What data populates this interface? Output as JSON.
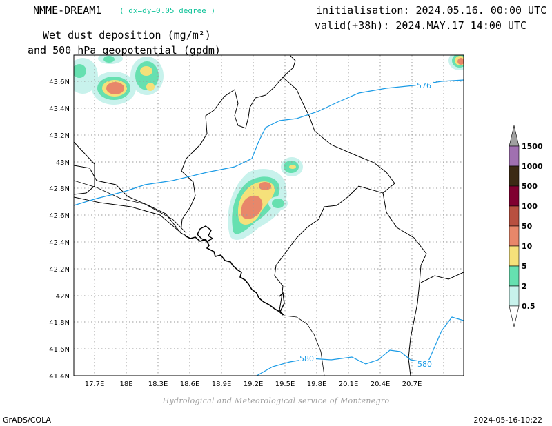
{
  "header": {
    "model": "NMME-DREAM1",
    "resolution": "( dx=dy=0.05 degree )",
    "initialisation": "initialisation: 2024.05.16. 00:00 UTC",
    "valid": "valid(+38h): 2024.MAY.17 14:00 UTC",
    "title_line1": "Wet dust deposition (mg/m²)",
    "title_line2": "and 500 hPa geopotential (gpdm)"
  },
  "map": {
    "lat_labels": [
      "43.6N",
      "43.4N",
      "43.2N",
      "43N",
      "42.8N",
      "42.6N",
      "42.4N",
      "42.2N",
      "42N",
      "41.8N",
      "41.6N",
      "41.4N"
    ],
    "lon_labels": [
      "17.7E",
      "18E",
      "18.3E",
      "18.6E",
      "18.9E",
      "19.2E",
      "19.5E",
      "19.8E",
      "20.1E",
      "20.4E",
      "20.7E"
    ],
    "contours": [
      {
        "label": "576",
        "color": "#1a9be6"
      },
      {
        "label": "580",
        "color": "#1a9be6"
      },
      {
        "label": "580",
        "color": "#1a9be6"
      }
    ]
  },
  "legend": {
    "levels": [
      "1500",
      "1000",
      "500",
      "100",
      "50",
      "10",
      "5",
      "2",
      "0.5"
    ],
    "colors": [
      "#a070b0",
      "#3c2a14",
      "#800030",
      "#b85040",
      "#e8876a",
      "#f5e17a",
      "#66e0b0",
      "#c8f2ec"
    ]
  },
  "footer": {
    "credit": "Hydrological and Meteorological service of Montenegro",
    "left": "GrADS/COLA",
    "right": "2024-05-16-10:22"
  }
}
